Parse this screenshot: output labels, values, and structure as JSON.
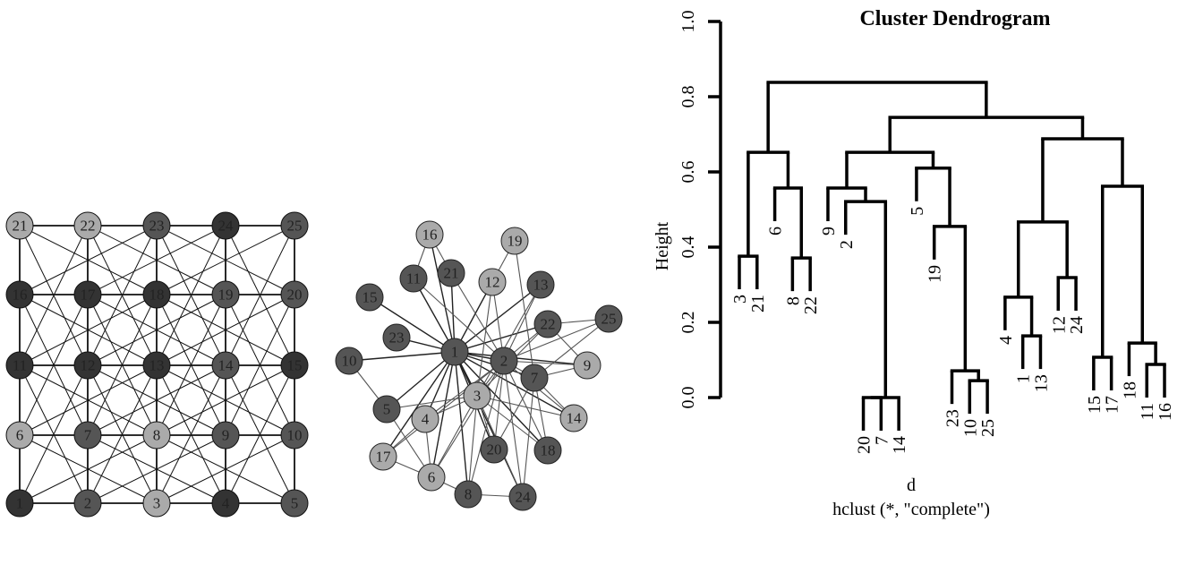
{
  "colors": {
    "light": "#aaaaaa",
    "mid": "#555555",
    "dark": "#333333"
  },
  "grid_graph": {
    "nodes": [
      "1",
      "2",
      "3",
      "4",
      "5",
      "6",
      "7",
      "8",
      "9",
      "10",
      "11",
      "12",
      "13",
      "14",
      "15",
      "16",
      "17",
      "18",
      "19",
      "20",
      "21",
      "22",
      "23",
      "24",
      "25"
    ],
    "shade": {
      "1": "dark",
      "2": "mid",
      "3": "light",
      "4": "dark",
      "5": "mid",
      "6": "light",
      "7": "mid",
      "8": "light",
      "9": "mid",
      "10": "mid",
      "11": "dark",
      "12": "dark",
      "13": "dark",
      "14": "mid",
      "15": "dark",
      "16": "dark",
      "17": "dark",
      "18": "dark",
      "19": "mid",
      "20": "mid",
      "21": "light",
      "22": "light",
      "23": "mid",
      "24": "dark",
      "25": "mid"
    },
    "edge_rule": "grid neighbours + knight moves"
  },
  "network_graph": {
    "nodes": [
      "1",
      "2",
      "3",
      "4",
      "5",
      "6",
      "7",
      "8",
      "9",
      "10",
      "11",
      "12",
      "13",
      "14",
      "15",
      "16",
      "17",
      "18",
      "19",
      "20",
      "21",
      "22",
      "23",
      "24",
      "25"
    ],
    "shade": {
      "1": "mid",
      "2": "mid",
      "3": "light",
      "4": "light",
      "5": "mid",
      "6": "light",
      "7": "mid",
      "8": "mid",
      "9": "light",
      "10": "mid",
      "11": "mid",
      "12": "light",
      "13": "mid",
      "14": "light",
      "15": "mid",
      "16": "light",
      "17": "light",
      "18": "mid",
      "19": "light",
      "20": "mid",
      "21": "mid",
      "22": "mid",
      "23": "mid",
      "24": "mid",
      "25": "mid"
    },
    "edges": [
      [
        "1",
        "15"
      ],
      [
        "1",
        "23"
      ],
      [
        "1",
        "10"
      ],
      [
        "1",
        "11"
      ],
      [
        "1",
        "21"
      ],
      [
        "1",
        "16"
      ],
      [
        "1",
        "12"
      ],
      [
        "1",
        "13"
      ],
      [
        "1",
        "22"
      ],
      [
        "1",
        "2"
      ],
      [
        "1",
        "9"
      ],
      [
        "1",
        "7"
      ],
      [
        "1",
        "14"
      ],
      [
        "1",
        "18"
      ],
      [
        "1",
        "3"
      ],
      [
        "1",
        "5"
      ],
      [
        "1",
        "4"
      ],
      [
        "1",
        "17"
      ],
      [
        "1",
        "6"
      ],
      [
        "1",
        "8"
      ],
      [
        "1",
        "20"
      ],
      [
        "1",
        "24"
      ],
      [
        "2",
        "21"
      ],
      [
        "2",
        "11"
      ],
      [
        "2",
        "12"
      ],
      [
        "2",
        "13"
      ],
      [
        "2",
        "22"
      ],
      [
        "2",
        "25"
      ],
      [
        "2",
        "9"
      ],
      [
        "2",
        "7"
      ],
      [
        "2",
        "3"
      ],
      [
        "2",
        "20"
      ],
      [
        "2",
        "24"
      ],
      [
        "2",
        "14"
      ],
      [
        "2",
        "18"
      ],
      [
        "2",
        "8"
      ],
      [
        "2",
        "17"
      ],
      [
        "2",
        "4"
      ],
      [
        "2",
        "6"
      ],
      [
        "3",
        "5"
      ],
      [
        "3",
        "4"
      ],
      [
        "3",
        "14"
      ],
      [
        "3",
        "18"
      ],
      [
        "3",
        "20"
      ],
      [
        "3",
        "6"
      ],
      [
        "3",
        "8"
      ],
      [
        "3",
        "22"
      ],
      [
        "3",
        "13"
      ],
      [
        "3",
        "12"
      ],
      [
        "3",
        "24"
      ],
      [
        "16",
        "11"
      ],
      [
        "16",
        "21"
      ],
      [
        "19",
        "12"
      ],
      [
        "19",
        "7"
      ],
      [
        "10",
        "5"
      ],
      [
        "5",
        "6"
      ],
      [
        "17",
        "6"
      ],
      [
        "17",
        "4"
      ],
      [
        "4",
        "6"
      ],
      [
        "6",
        "8"
      ],
      [
        "8",
        "24"
      ],
      [
        "7",
        "14"
      ],
      [
        "7",
        "18"
      ],
      [
        "7",
        "25"
      ],
      [
        "7",
        "20"
      ],
      [
        "7",
        "24"
      ],
      [
        "22",
        "25"
      ],
      [
        "9",
        "7"
      ],
      [
        "22",
        "9"
      ]
    ]
  },
  "chart_data": {
    "type": "dendrogram",
    "title": "Cluster Dendrogram",
    "ylabel": "Height",
    "xlabel": "d",
    "subtitle": "hclust (*, \"complete\")",
    "ylim": [
      0,
      1.0
    ],
    "yticks": [
      "0.0",
      "0.2",
      "0.4",
      "0.6",
      "0.8",
      "1.0"
    ],
    "leaf_order": [
      "3",
      "21",
      "6",
      "8",
      "22",
      "9",
      "2",
      "20",
      "7",
      "14",
      "5",
      "19",
      "23",
      "10",
      "25",
      "4",
      "1",
      "13",
      "12",
      "24",
      "15",
      "17",
      "18",
      "11",
      "16"
    ],
    "tree": {
      "h": 0.838,
      "c": [
        {
          "h": 0.652,
          "c": [
            {
              "h": 0.376,
              "c": [
                "3",
                "21"
              ]
            },
            {
              "h": 0.557,
              "c": [
                "6",
                {
                  "h": 0.371,
                  "c": [
                    "8",
                    "22"
                  ]
                }
              ]
            }
          ]
        },
        {
          "h": 0.745,
          "c": [
            {
              "h": 0.652,
              "c": [
                {
                  "h": 0.557,
                  "c": [
                    "9",
                    {
                      "h": 0.521,
                      "c": [
                        "2",
                        {
                          "h": 0.0,
                          "c": [
                            {
                              "h": 0.0,
                              "c": [
                                "20",
                                "7"
                              ]
                            },
                            "14"
                          ]
                        }
                      ]
                    }
                  ]
                },
                {
                  "h": 0.61,
                  "c": [
                    "5",
                    {
                      "h": 0.455,
                      "c": [
                        "19",
                        {
                          "h": 0.071,
                          "c": [
                            "23",
                            {
                              "h": 0.045,
                              "c": [
                                "10",
                                "25"
                              ]
                            }
                          ]
                        }
                      ]
                    }
                  ]
                }
              ]
            },
            {
              "h": 0.688,
              "c": [
                {
                  "h": 0.467,
                  "c": [
                    {
                      "h": 0.267,
                      "c": [
                        "4",
                        {
                          "h": 0.164,
                          "c": [
                            "1",
                            "13"
                          ]
                        }
                      ]
                    },
                    {
                      "h": 0.319,
                      "c": [
                        "12",
                        "24"
                      ]
                    }
                  ]
                },
                {
                  "h": 0.562,
                  "c": [
                    {
                      "h": 0.107,
                      "c": [
                        "15",
                        "17"
                      ]
                    },
                    {
                      "h": 0.145,
                      "c": [
                        "18",
                        {
                          "h": 0.088,
                          "c": [
                            "11",
                            "16"
                          ]
                        }
                      ]
                    }
                  ]
                }
              ]
            }
          ]
        }
      ]
    }
  }
}
